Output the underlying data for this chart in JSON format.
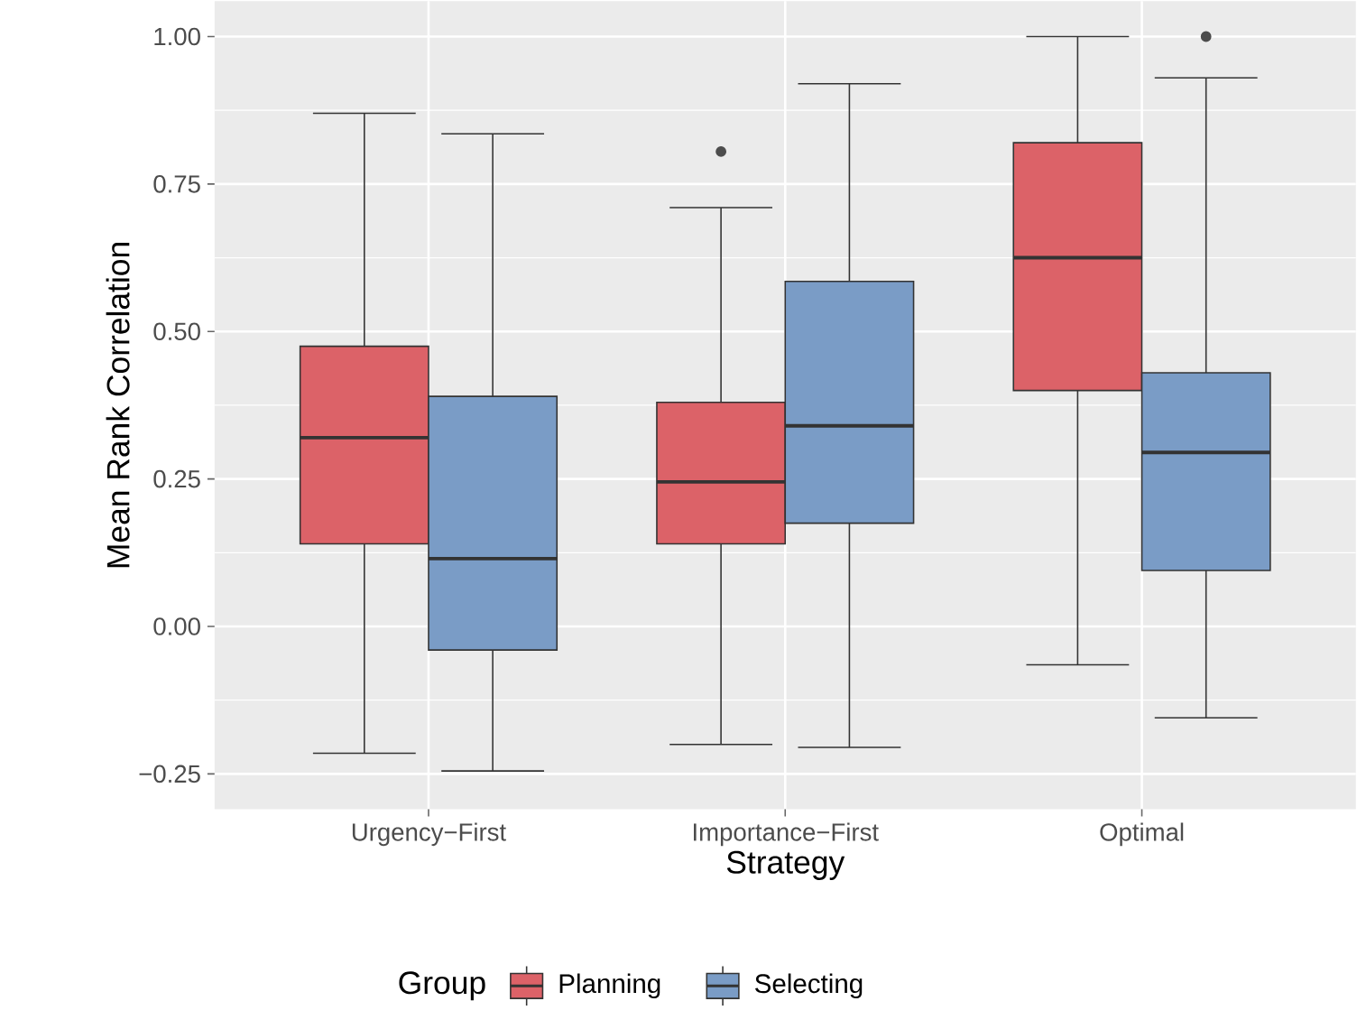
{
  "chart_data": {
    "type": "box",
    "xlabel": "Strategy",
    "ylabel": "Mean Rank Correlation",
    "legend_title": "Group",
    "categories": [
      "Urgency−First",
      "Importance−First",
      "Optimal"
    ],
    "ylim": [
      -0.31,
      1.06
    ],
    "yticks": [
      {
        "value": -0.25,
        "label": "−0.25"
      },
      {
        "value": 0,
        "label": "0.00"
      },
      {
        "value": 0.25,
        "label": "0.25"
      },
      {
        "value": 0.5,
        "label": "0.50"
      },
      {
        "value": 0.75,
        "label": "0.75"
      },
      {
        "value": 1.0,
        "label": "1.00"
      }
    ],
    "grid": true,
    "legend": "bottom",
    "series": [
      {
        "name": "Planning",
        "color": "#dc6268",
        "boxes": [
          {
            "low": -0.215,
            "q1": 0.14,
            "median": 0.32,
            "q3": 0.475,
            "high": 0.87
          },
          {
            "low": -0.2,
            "q1": 0.14,
            "median": 0.245,
            "q3": 0.38,
            "high": 0.71,
            "outliers": [
              0.805
            ]
          },
          {
            "low": -0.065,
            "q1": 0.4,
            "median": 0.625,
            "q3": 0.82,
            "high": 1.0
          }
        ]
      },
      {
        "name": "Selecting",
        "color": "#7a9cc6",
        "boxes": [
          {
            "low": -0.245,
            "q1": -0.04,
            "median": 0.115,
            "q3": 0.39,
            "high": 0.835
          },
          {
            "low": -0.205,
            "q1": 0.175,
            "median": 0.34,
            "q3": 0.585,
            "high": 0.92
          },
          {
            "low": -0.155,
            "q1": 0.095,
            "median": 0.295,
            "q3": 0.43,
            "high": 0.93,
            "outliers": [
              1.0
            ]
          }
        ]
      }
    ]
  }
}
